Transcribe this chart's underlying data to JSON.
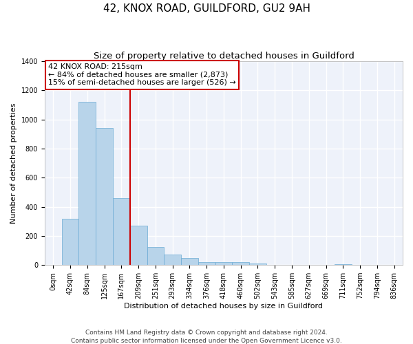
{
  "title": "42, KNOX ROAD, GUILDFORD, GU2 9AH",
  "subtitle": "Size of property relative to detached houses in Guildford",
  "xlabel": "Distribution of detached houses by size in Guildford",
  "ylabel": "Number of detached properties",
  "categories": [
    "0sqm",
    "42sqm",
    "84sqm",
    "125sqm",
    "167sqm",
    "209sqm",
    "251sqm",
    "293sqm",
    "334sqm",
    "376sqm",
    "418sqm",
    "460sqm",
    "502sqm",
    "543sqm",
    "585sqm",
    "627sqm",
    "669sqm",
    "711sqm",
    "752sqm",
    "794sqm",
    "836sqm"
  ],
  "values": [
    0,
    320,
    1120,
    940,
    460,
    270,
    125,
    70,
    48,
    20,
    22,
    18,
    10,
    0,
    0,
    0,
    0,
    5,
    0,
    0,
    0
  ],
  "bar_color": "#b8d4ea",
  "bar_edge_color": "#6aaad4",
  "background_color": "#eef2fa",
  "grid_color": "#ffffff",
  "annotation_line1": "42 KNOX ROAD: 215sqm",
  "annotation_line2": "← 84% of detached houses are smaller (2,873)",
  "annotation_line3": "15% of semi-detached houses are larger (526) →",
  "vline_color": "#cc0000",
  "annotation_box_color": "#cc0000",
  "ylim": [
    0,
    1400
  ],
  "yticks": [
    0,
    200,
    400,
    600,
    800,
    1000,
    1200,
    1400
  ],
  "footer_line1": "Contains HM Land Registry data © Crown copyright and database right 2024.",
  "footer_line2": "Contains public sector information licensed under the Open Government Licence v3.0.",
  "title_fontsize": 11,
  "subtitle_fontsize": 9.5,
  "label_fontsize": 8,
  "tick_fontsize": 7,
  "annotation_fontsize": 8,
  "footer_fontsize": 6.5
}
